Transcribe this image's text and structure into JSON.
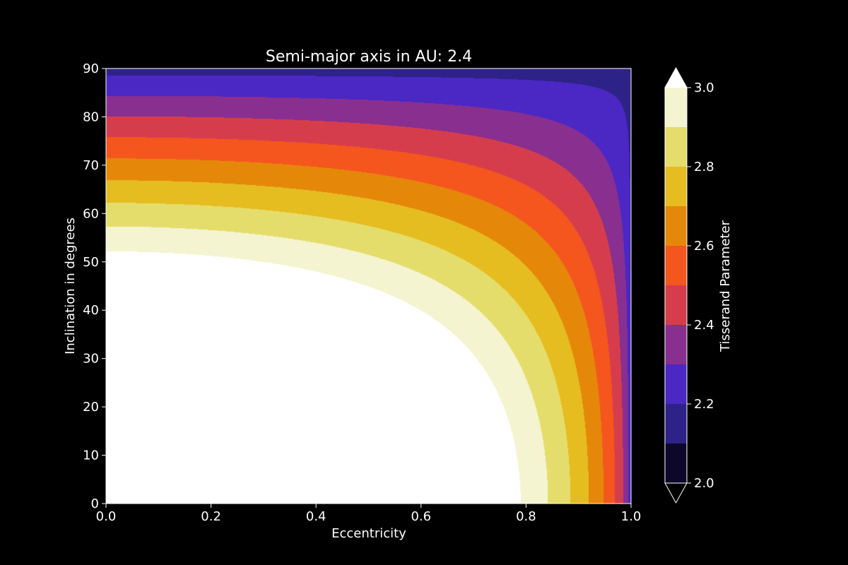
{
  "chart_data": {
    "type": "contourf",
    "title": "Semi-major axis in AU: 2.4",
    "semi_major_axis_au": 2.4,
    "xlabel": "Eccentricity",
    "ylabel": "Inclination in degrees",
    "xlim": [
      0.0,
      1.0
    ],
    "ylim": [
      0,
      90
    ],
    "xticks": [
      "0.0",
      "0.2",
      "0.4",
      "0.6",
      "0.8",
      "1.0"
    ],
    "yticks": [
      "0",
      "10",
      "20",
      "30",
      "40",
      "50",
      "60",
      "70",
      "80",
      "90"
    ],
    "grid": false,
    "colorbar": {
      "label": "Tisserand Parameter",
      "extend": "both",
      "min": 2.0,
      "max": 3.0,
      "levels": [
        2.0,
        2.1,
        2.2,
        2.3,
        2.4,
        2.5,
        2.6,
        2.7,
        2.8,
        2.9,
        3.0
      ],
      "ticks": [
        "2.0",
        "2.2",
        "2.4",
        "2.6",
        "2.8",
        "3.0"
      ],
      "colors": [
        "#0d0829",
        "#2d2287",
        "#4b27c4",
        "#882f90",
        "#d63d4c",
        "#f5561e",
        "#e5880a",
        "#e5bd21",
        "#e5dd6b",
        "#f4f4d0"
      ],
      "under_color": "#000000",
      "over_color": "#ffffff"
    },
    "background_color": "#000000",
    "text_color": "#ffffff"
  }
}
